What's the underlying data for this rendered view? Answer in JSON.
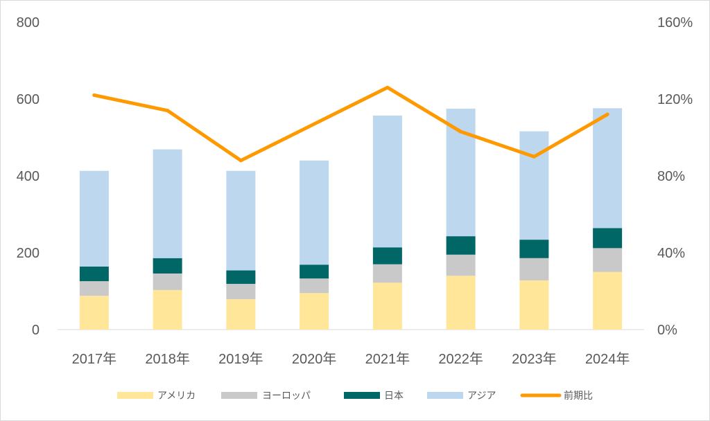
{
  "chart_data": {
    "type": "bar",
    "stacked": true,
    "categories": [
      "2017年",
      "2018年",
      "2019年",
      "2020年",
      "2021年",
      "2022年",
      "2023年",
      "2024年"
    ],
    "series": [
      {
        "name": "アメリカ",
        "type": "bar",
        "axis": "left",
        "color": "#FFE699",
        "values": [
          88,
          103,
          79,
          95,
          122,
          140,
          128,
          150
        ]
      },
      {
        "name": "ヨーロッパ",
        "type": "bar",
        "axis": "left",
        "color": "#C9C9C9",
        "values": [
          38,
          43,
          40,
          38,
          48,
          55,
          58,
          62
        ]
      },
      {
        "name": "日本",
        "type": "bar",
        "axis": "left",
        "color": "#006666",
        "values": [
          38,
          40,
          35,
          36,
          44,
          48,
          48,
          52
        ]
      },
      {
        "name": "アジア",
        "type": "bar",
        "axis": "left",
        "color": "#BDD7EE",
        "values": [
          249,
          283,
          259,
          271,
          343,
          332,
          282,
          312
        ]
      },
      {
        "name": "前期比",
        "type": "line",
        "axis": "right",
        "color": "#FF9900",
        "values": [
          122,
          114,
          88,
          107,
          126,
          103,
          90,
          112
        ]
      }
    ],
    "y_left": {
      "min": 0,
      "max": 800,
      "ticks": [
        "0",
        "200",
        "400",
        "600",
        "800"
      ]
    },
    "y_right": {
      "min": 0,
      "max": 160,
      "ticks": [
        "0%",
        "40%",
        "80%",
        "120%",
        "160%"
      ]
    },
    "gridlines": false,
    "legend_position": "bottom"
  }
}
